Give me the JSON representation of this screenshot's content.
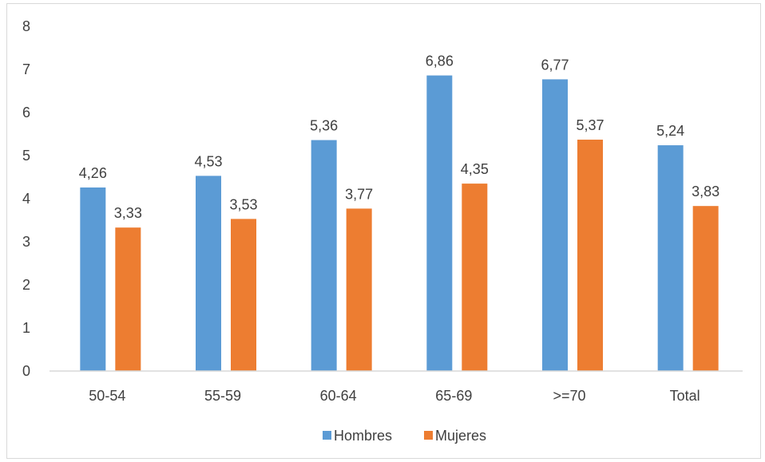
{
  "chart_data": {
    "type": "bar",
    "categories": [
      "50-54",
      "55-59",
      "60-64",
      "65-69",
      ">=70",
      "Total"
    ],
    "series": [
      {
        "name": "Hombres",
        "color": "#5b9bd5",
        "values": [
          4.26,
          4.53,
          5.36,
          6.86,
          6.77,
          5.24
        ],
        "labels": [
          "4,26",
          "4,53",
          "5,36",
          "6,86",
          "6,77",
          "5,24"
        ]
      },
      {
        "name": "Mujeres",
        "color": "#ed7d31",
        "values": [
          3.33,
          3.53,
          3.77,
          4.35,
          5.37,
          3.83
        ],
        "labels": [
          "3,33",
          "3,53",
          "3,77",
          "4,35",
          "5,37",
          "3,83"
        ]
      }
    ],
    "yticks": [
      "0",
      "1",
      "2",
      "3",
      "4",
      "5",
      "6",
      "7",
      "8"
    ],
    "ylim": [
      0,
      8
    ],
    "grid": false,
    "legend_position": "bottom"
  }
}
